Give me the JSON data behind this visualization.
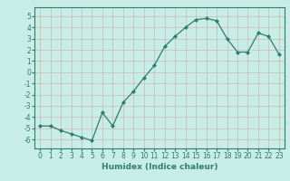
{
  "x": [
    0,
    1,
    2,
    3,
    4,
    5,
    6,
    7,
    8,
    9,
    10,
    11,
    12,
    13,
    14,
    15,
    16,
    17,
    18,
    19,
    20,
    21,
    22,
    23
  ],
  "y": [
    -4.8,
    -4.8,
    -5.2,
    -5.5,
    -5.8,
    -6.1,
    -3.6,
    -4.8,
    -2.7,
    -1.7,
    -0.5,
    0.6,
    2.3,
    3.2,
    4.0,
    4.7,
    4.8,
    4.6,
    3.0,
    1.8,
    1.8,
    3.5,
    3.2,
    1.6
  ],
  "line_color": "#2e7d6e",
  "marker": "D",
  "marker_size": 2,
  "linewidth": 0.9,
  "xlabel": "Humidex (Indice chaleur)",
  "xlim": [
    -0.5,
    23.5
  ],
  "ylim": [
    -6.8,
    5.8
  ],
  "yticks": [
    -6,
    -5,
    -4,
    -3,
    -2,
    -1,
    0,
    1,
    2,
    3,
    4,
    5
  ],
  "xticks": [
    0,
    1,
    2,
    3,
    4,
    5,
    6,
    7,
    8,
    9,
    10,
    11,
    12,
    13,
    14,
    15,
    16,
    17,
    18,
    19,
    20,
    21,
    22,
    23
  ],
  "bg_color": "#c8ece6",
  "grid_color": "#b0d8d0",
  "xlabel_fontsize": 6.5,
  "tick_fontsize": 5.5
}
